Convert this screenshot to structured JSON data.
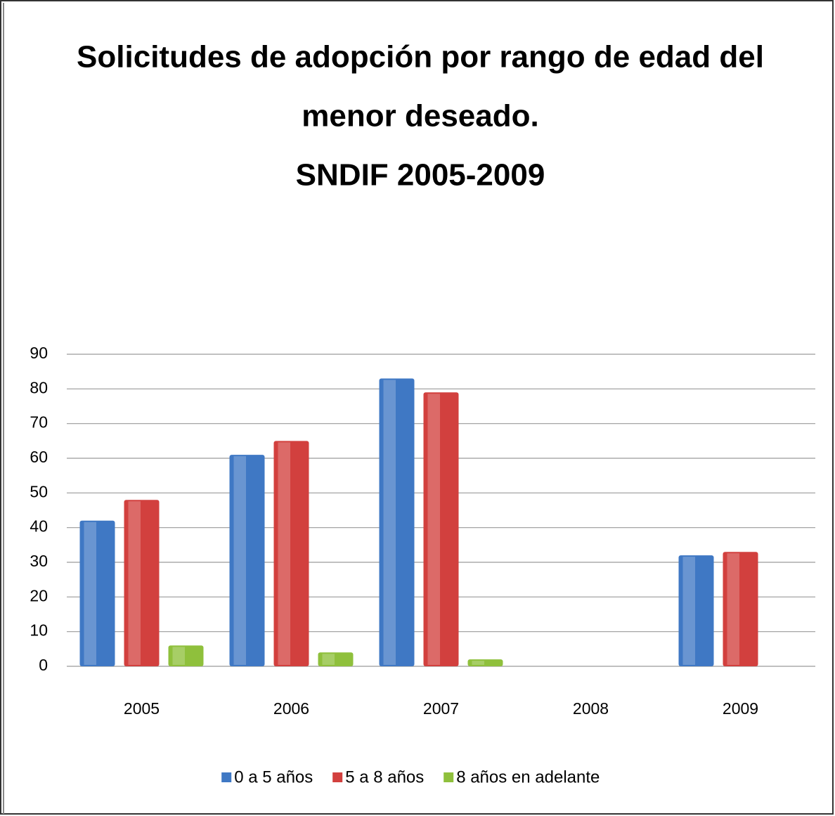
{
  "chart_data": {
    "type": "bar",
    "title": [
      "Solicitudes de adopción por rango de edad del",
      "menor deseado.",
      "SNDIF 2005-2009"
    ],
    "categories": [
      "2005",
      "2006",
      "2007",
      "2008",
      "2009"
    ],
    "series": [
      {
        "name": "0 a 5 años",
        "color": "#3f78c4",
        "values": [
          42,
          61,
          83,
          null,
          32
        ]
      },
      {
        "name": "5 a 8 años",
        "color": "#d2403e",
        "values": [
          48,
          65,
          79,
          null,
          33
        ]
      },
      {
        "name": "8 años en adelante",
        "color": "#8fc03c",
        "values": [
          6,
          4,
          2,
          null,
          null
        ]
      }
    ],
    "ylim": [
      0,
      90
    ],
    "yticks": [
      0,
      10,
      20,
      30,
      40,
      50,
      60,
      70,
      80,
      90
    ],
    "grid": true,
    "legend": "bottom"
  }
}
